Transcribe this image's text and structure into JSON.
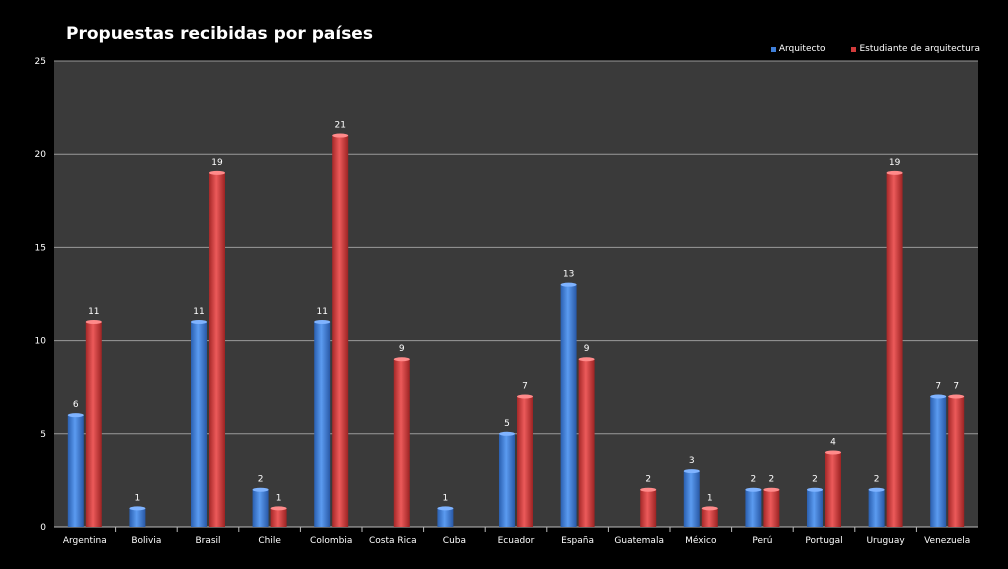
{
  "chart_data": {
    "type": "bar",
    "title": "Propuestas recibidas por países",
    "categories": [
      "Argentina",
      "Bolivia",
      "Brasil",
      "Chile",
      "Colombia",
      "Costa Rica",
      "Cuba",
      "Ecuador",
      "España",
      "Guatemala",
      "México",
      "Perú",
      "Portugal",
      "Uruguay",
      "Venezuela"
    ],
    "series": [
      {
        "name": "Arquitecto",
        "color": "#3f7fd9",
        "values": [
          6,
          1,
          11,
          2,
          11,
          null,
          1,
          5,
          13,
          null,
          3,
          2,
          2,
          2,
          7
        ]
      },
      {
        "name": "Estudiante de arquitectura",
        "color": "#d23b3b",
        "values": [
          11,
          null,
          19,
          1,
          21,
          9,
          null,
          7,
          9,
          2,
          1,
          2,
          4,
          19,
          7
        ]
      }
    ],
    "ylim": [
      0,
      25
    ],
    "yticks": [
      0,
      5,
      10,
      15,
      20,
      25
    ],
    "grid": true,
    "legend_position": "top-right",
    "plot_background": "#3a3a3a",
    "gridline_color": "#9a9a9a"
  }
}
